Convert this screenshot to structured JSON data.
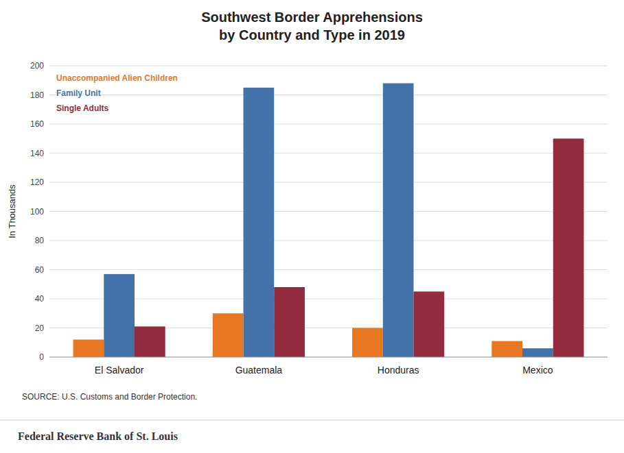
{
  "chart_data": {
    "type": "bar",
    "title": "Southwest Border Apprehensions",
    "subtitle": "by Country and Type in 2019",
    "ylabel": "In Thousands",
    "categories": [
      "El Salvador",
      "Guatemala",
      "Honduras",
      "Mexico"
    ],
    "series": [
      {
        "name": "Unaccompanied Alien Children",
        "color": "#E87722",
        "values": [
          12,
          30,
          20,
          11
        ]
      },
      {
        "name": "Family Unit",
        "color": "#4472A8",
        "values": [
          57,
          185,
          188,
          6
        ]
      },
      {
        "name": "Single Adults",
        "color": "#922B3E",
        "values": [
          21,
          48,
          45,
          150
        ]
      }
    ],
    "ylim": [
      0,
      200
    ],
    "yticks": [
      0,
      20,
      40,
      60,
      80,
      100,
      120,
      140,
      160,
      180,
      200
    ],
    "grid": true,
    "legend": "upper left",
    "annotations": [
      "SOURCE: U.S. Customs and Border Protection.",
      "Federal Reserve Bank of St. Louis"
    ]
  }
}
